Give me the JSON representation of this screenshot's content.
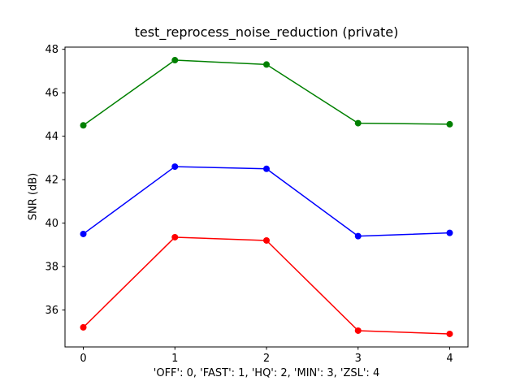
{
  "chart_data": {
    "type": "line",
    "title": "test_reprocess_noise_reduction (private)",
    "xlabel": "'OFF': 0, 'FAST': 1, 'HQ': 2, 'MIN': 3, 'ZSL': 4",
    "ylabel": "SNR (dB)",
    "x": [
      0,
      1,
      2,
      3,
      4
    ],
    "xticks": [
      0,
      1,
      2,
      3,
      4
    ],
    "yticks": [
      36,
      38,
      40,
      42,
      44,
      46,
      48
    ],
    "xlim": [
      -0.2,
      4.2
    ],
    "ylim": [
      34.3,
      48.1
    ],
    "grid": false,
    "legend_position": "none",
    "axis_color": "#000000",
    "background_color": "#ffffff",
    "series": [
      {
        "name": "green",
        "color": "#008000",
        "values": [
          44.5,
          47.5,
          47.3,
          44.6,
          44.55
        ]
      },
      {
        "name": "blue",
        "color": "#0000ff",
        "values": [
          39.5,
          42.6,
          42.5,
          39.4,
          39.55
        ]
      },
      {
        "name": "red",
        "color": "#ff0000",
        "values": [
          35.2,
          39.35,
          39.2,
          35.05,
          34.9
        ]
      }
    ]
  }
}
